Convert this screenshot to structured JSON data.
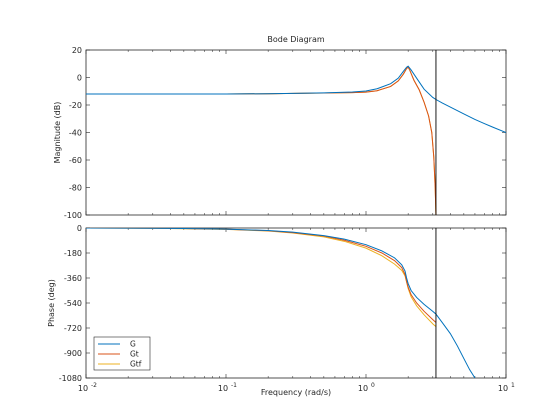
{
  "chart_data": [
    {
      "type": "line",
      "id": "magnitude",
      "title": "Bode Diagram",
      "ylabel": "Magnitude (dB)",
      "xscale": "log",
      "xlim": [
        0.01,
        10
      ],
      "ylim": [
        -100,
        20
      ],
      "yticks": [
        20,
        0,
        -20,
        -40,
        -60,
        -80,
        -100
      ],
      "vline_x": 3.16,
      "series": [
        {
          "name": "G",
          "color": "#0072BD",
          "x": [
            0.01,
            0.05,
            0.1,
            0.2,
            0.5,
            0.8,
            1.0,
            1.2,
            1.5,
            1.7,
            1.85,
            1.95,
            2.0,
            2.1,
            2.3,
            2.6,
            3.0,
            3.16,
            3.5,
            4.0,
            5.0,
            6.0,
            7.0,
            8.0,
            10.0
          ],
          "y": [
            -12,
            -12,
            -12,
            -11.8,
            -11.2,
            -10.5,
            -9.8,
            -8.2,
            -4.5,
            -0.5,
            4.5,
            7.5,
            8.2,
            5.5,
            -0.5,
            -8.5,
            -14.5,
            -16,
            -18.5,
            -21.5,
            -26.5,
            -30.5,
            -33.5,
            -36,
            -40
          ]
        },
        {
          "name": "Gt",
          "color": "#D95319",
          "x": [
            0.01,
            0.05,
            0.1,
            0.2,
            0.5,
            0.8,
            1.0,
            1.2,
            1.5,
            1.7,
            1.85,
            1.95,
            2.0,
            2.05,
            2.2,
            2.4,
            2.6,
            2.8,
            2.95,
            3.05,
            3.12,
            3.16
          ],
          "y": [
            -12,
            -12,
            -12,
            -11.8,
            -11.3,
            -11,
            -10.6,
            -9.6,
            -6.5,
            -2.5,
            2.5,
            6.5,
            7.5,
            5.5,
            -2,
            -9,
            -18,
            -28,
            -40,
            -58,
            -80,
            -100
          ]
        },
        {
          "name": "Gtf",
          "color": "#EDB120",
          "x": [
            0.01,
            0.05,
            0.1,
            0.2,
            0.5,
            0.8,
            1.0,
            1.2,
            1.5,
            1.7,
            1.85,
            1.95,
            2.0,
            2.05,
            2.2,
            2.4,
            2.6,
            2.8,
            2.95,
            3.05,
            3.12,
            3.16
          ],
          "y": [
            -12,
            -12,
            -12,
            -11.8,
            -11.3,
            -11,
            -10.6,
            -9.6,
            -6.5,
            -2.5,
            2.5,
            6.5,
            7.5,
            5.5,
            -2,
            -9,
            -18,
            -28,
            -40,
            -58,
            -80,
            -100
          ]
        }
      ]
    },
    {
      "type": "line",
      "id": "phase",
      "xlabel": "Frequency  (rad/s)",
      "ylabel": "Phase (deg)",
      "xscale": "log",
      "xlim": [
        0.01,
        10
      ],
      "ylim": [
        -1080,
        0
      ],
      "yticks": [
        0,
        -180,
        -360,
        -540,
        -720,
        -900,
        -1080
      ],
      "xticks": [
        0.01,
        0.1,
        1,
        10
      ],
      "xtick_labels": [
        {
          "base": "10",
          "exp": "-2"
        },
        {
          "base": "10",
          "exp": "-1"
        },
        {
          "base": "10",
          "exp": "0"
        },
        {
          "base": "10",
          "exp": "1"
        }
      ],
      "vline_x": 3.16,
      "legend": {
        "placement": "bottom-left",
        "entries": [
          "G",
          "Gt",
          "Gtf"
        ]
      },
      "series": [
        {
          "name": "G",
          "color": "#0072BD",
          "x": [
            0.01,
            0.03,
            0.05,
            0.1,
            0.2,
            0.3,
            0.5,
            0.7,
            1.0,
            1.3,
            1.6,
            1.8,
            1.9,
            1.95,
            2.0,
            2.1,
            2.3,
            2.6,
            3.0,
            3.16,
            3.5,
            4.0,
            4.5,
            5.0,
            5.5,
            6.0
          ],
          "y": [
            0,
            -2,
            -4,
            -8,
            -18,
            -30,
            -55,
            -80,
            -120,
            -165,
            -215,
            -265,
            -310,
            -360,
            -400,
            -450,
            -500,
            -550,
            -600,
            -620,
            -680,
            -760,
            -850,
            -940,
            -1020,
            -1080
          ]
        },
        {
          "name": "Gt",
          "color": "#D95319",
          "x": [
            0.01,
            0.03,
            0.05,
            0.1,
            0.2,
            0.3,
            0.5,
            0.7,
            1.0,
            1.3,
            1.6,
            1.8,
            1.9,
            1.95,
            2.0,
            2.1,
            2.3,
            2.6,
            3.0,
            3.16
          ],
          "y": [
            0,
            -2,
            -4,
            -9,
            -20,
            -33,
            -58,
            -88,
            -132,
            -180,
            -235,
            -285,
            -335,
            -385,
            -425,
            -480,
            -540,
            -600,
            -660,
            -680
          ]
        },
        {
          "name": "Gtf",
          "color": "#EDB120",
          "x": [
            0.01,
            0.03,
            0.05,
            0.1,
            0.2,
            0.3,
            0.5,
            0.7,
            1.0,
            1.3,
            1.6,
            1.8,
            1.9,
            1.95,
            2.0,
            2.1,
            2.3,
            2.6,
            3.0,
            3.16
          ],
          "y": [
            0,
            -2,
            -5,
            -10,
            -22,
            -36,
            -64,
            -96,
            -145,
            -200,
            -260,
            -305,
            -345,
            -390,
            -435,
            -495,
            -560,
            -625,
            -690,
            -710
          ]
        }
      ]
    }
  ]
}
